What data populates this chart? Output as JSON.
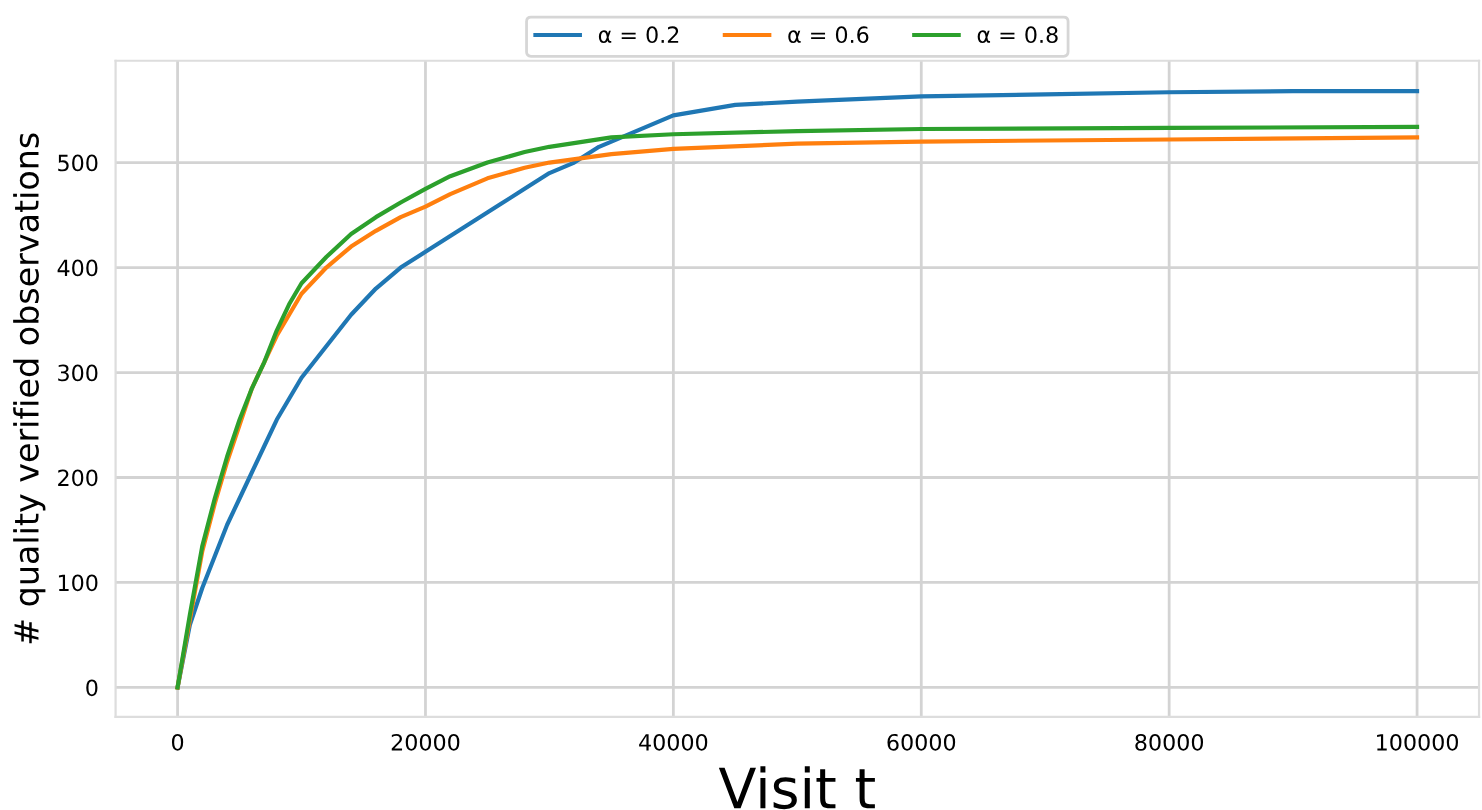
{
  "chart_data": {
    "type": "line",
    "xlabel": "Visit t",
    "ylabel": "# quality verified observations",
    "xlim": [
      -5000,
      105000
    ],
    "ylim": [
      -28,
      597
    ],
    "xticks": [
      0,
      20000,
      40000,
      60000,
      80000,
      100000
    ],
    "yticks": [
      0,
      100,
      200,
      300,
      400,
      500
    ],
    "grid": true,
    "legend": "top",
    "line_style": "solid",
    "series": [
      {
        "name": "α = 0.2",
        "color": "#1f77b4",
        "x": [
          0,
          1000,
          2000,
          3000,
          4000,
          5000,
          6000,
          7000,
          8000,
          9000,
          10000,
          12000,
          14000,
          16000,
          18000,
          20000,
          22000,
          24000,
          26000,
          28000,
          30000,
          32000,
          34000,
          36000,
          38000,
          40000,
          45000,
          50000,
          60000,
          70000,
          80000,
          90000,
          100000
        ],
        "values": [
          0,
          60,
          95,
          125,
          155,
          180,
          205,
          230,
          255,
          275,
          295,
          325,
          355,
          380,
          400,
          415,
          430,
          445,
          460,
          475,
          490,
          500,
          515,
          525,
          535,
          545,
          555,
          558,
          563,
          565,
          567,
          568,
          568
        ]
      },
      {
        "name": "α = 0.6",
        "color": "#ff7f0e",
        "x": [
          0,
          1000,
          2000,
          3000,
          4000,
          5000,
          6000,
          7000,
          8000,
          9000,
          10000,
          12000,
          14000,
          16000,
          18000,
          20000,
          22000,
          25000,
          28000,
          30000,
          35000,
          40000,
          50000,
          60000,
          80000,
          100000
        ],
        "values": [
          0,
          65,
          130,
          175,
          215,
          250,
          285,
          310,
          335,
          355,
          375,
          400,
          420,
          435,
          448,
          458,
          470,
          485,
          495,
          500,
          508,
          513,
          518,
          520,
          522,
          524
        ]
      },
      {
        "name": "α = 0.8",
        "color": "#2ca02c",
        "x": [
          0,
          1000,
          2000,
          3000,
          4000,
          5000,
          6000,
          7000,
          8000,
          9000,
          10000,
          12000,
          14000,
          16000,
          18000,
          20000,
          22000,
          25000,
          28000,
          30000,
          35000,
          40000,
          50000,
          60000,
          80000,
          100000
        ],
        "values": [
          0,
          70,
          135,
          180,
          220,
          255,
          285,
          310,
          340,
          365,
          385,
          410,
          432,
          448,
          462,
          475,
          487,
          500,
          510,
          515,
          524,
          527,
          530,
          532,
          533,
          534
        ]
      }
    ]
  }
}
